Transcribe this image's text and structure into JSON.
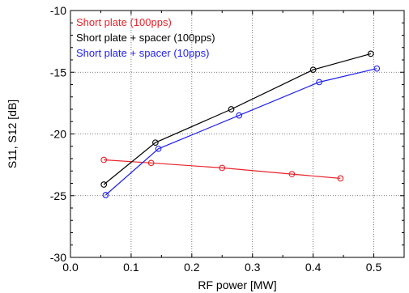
{
  "chart_data": {
    "type": "line",
    "title": "",
    "xlabel": "RF power [MW]",
    "ylabel": "S11, S12 [dB]",
    "xlim": [
      0.0,
      0.55
    ],
    "ylim": [
      -30,
      -10
    ],
    "xticks": [
      "0.0",
      "0.1",
      "0.2",
      "0.3",
      "0.4",
      "0.5"
    ],
    "yticks": [
      "-30",
      "-25",
      "-20",
      "-15",
      "-10"
    ],
    "grid": true,
    "legend_position": "top-left",
    "marker": "open-circle",
    "series": [
      {
        "name": "Short plate (100pps)",
        "color": "#e8232a",
        "x": [
          0.055,
          0.133,
          0.25,
          0.365,
          0.445
        ],
        "y": [
          -22.1,
          -22.35,
          -22.75,
          -23.25,
          -23.6
        ]
      },
      {
        "name": "Short plate + spacer (100pps)",
        "color": "#000000",
        "x": [
          0.055,
          0.14,
          0.265,
          0.4,
          0.495
        ],
        "y": [
          -24.1,
          -20.7,
          -18.0,
          -14.8,
          -13.5
        ]
      },
      {
        "name": "Short plate + spacer (10pps)",
        "color": "#1f1ff0",
        "x": [
          0.058,
          0.145,
          0.278,
          0.41,
          0.505
        ],
        "y": [
          -24.95,
          -21.2,
          -18.5,
          -15.8,
          -14.7
        ]
      }
    ]
  }
}
